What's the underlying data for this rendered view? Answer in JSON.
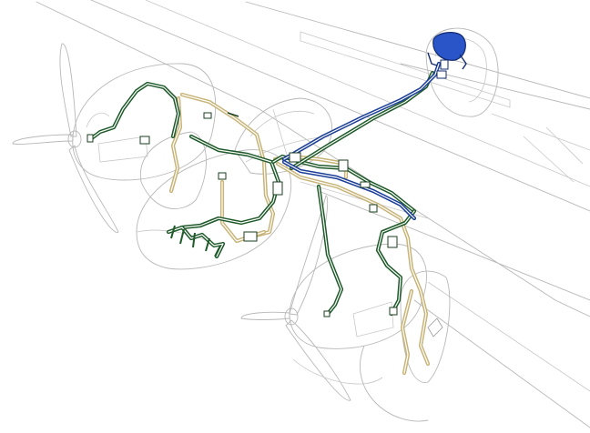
{
  "figure": {
    "subject": "aircraft-fuel-and-hydraulic-line-cutaway"
  },
  "colors": {
    "airframe_outline": "#b8b8b8",
    "line_green": "#1f5a2a",
    "line_tan": "#c8b478",
    "line_blue": "#1c3f98",
    "tank_blue": "#2a55c8",
    "background": "#ffffff"
  },
  "icons": [
    "propeller-icon",
    "nose-cone-icon",
    "tank-icon",
    "valve-icon",
    "pump-icon"
  ]
}
